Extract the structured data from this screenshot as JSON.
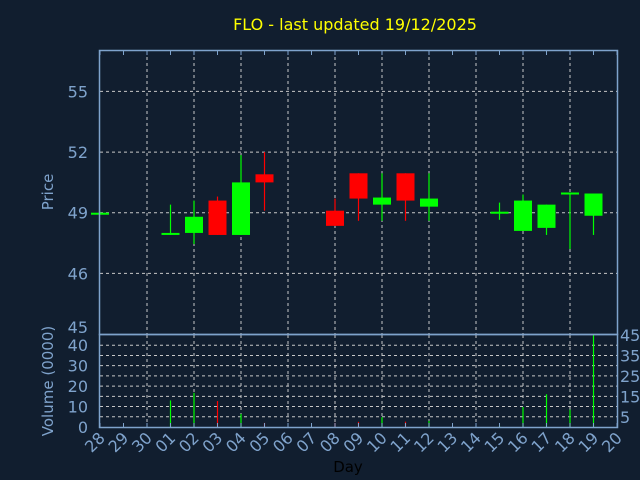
{
  "chart_data": {
    "type": "candlestick",
    "title": "FLO - last updated 19/12/2025",
    "xlabel": "Day",
    "price_panel": {
      "ylabel": "Price",
      "ylim": [
        43,
        57
      ],
      "yticks": [
        46,
        49,
        52,
        55
      ],
      "bottom_label": "45"
    },
    "volume_panel": {
      "ylabel": "Volume (0000)",
      "ylim": [
        0,
        45
      ],
      "yticks": [
        0,
        5,
        10,
        15,
        20,
        25,
        30,
        35,
        40,
        45
      ]
    },
    "categories": [
      "28",
      "29",
      "30",
      "01",
      "02",
      "03",
      "04",
      "05",
      "06",
      "07",
      "08",
      "09",
      "10",
      "11",
      "12",
      "13",
      "14",
      "15",
      "16",
      "17",
      "18",
      "19",
      "20"
    ],
    "candles": [
      {
        "day": "28",
        "open": 49.0,
        "high": 49.05,
        "low": 48.95,
        "close": 49.0,
        "volume": 0
      },
      {
        "day": "01",
        "open": 47.9,
        "high": 49.4,
        "low": 47.9,
        "close": 48.0,
        "volume": 13
      },
      {
        "day": "02",
        "open": 48.0,
        "high": 49.6,
        "low": 47.45,
        "close": 48.8,
        "volume": 16.7
      },
      {
        "day": "03",
        "open": 49.6,
        "high": 49.8,
        "low": 47.9,
        "close": 47.9,
        "volume": 12.7
      },
      {
        "day": "04",
        "open": 47.9,
        "high": 51.85,
        "low": 47.9,
        "close": 50.5,
        "volume": 6.4
      },
      {
        "day": "05",
        "open": 50.9,
        "high": 52.0,
        "low": 49.1,
        "close": 50.5,
        "volume": 2
      },
      {
        "day": "08",
        "open": 49.1,
        "high": 49.7,
        "low": 48.35,
        "close": 48.35,
        "volume": 2
      },
      {
        "day": "09",
        "open": 50.95,
        "high": 50.95,
        "low": 48.6,
        "close": 49.7,
        "volume": 2.5
      },
      {
        "day": "10",
        "open": 49.4,
        "high": 50.95,
        "low": 48.6,
        "close": 49.75,
        "volume": 4.8
      },
      {
        "day": "11",
        "open": 50.95,
        "high": 50.95,
        "low": 48.6,
        "close": 49.6,
        "volume": 2.6
      },
      {
        "day": "12",
        "open": 49.3,
        "high": 50.95,
        "low": 48.6,
        "close": 49.7,
        "volume": 3
      },
      {
        "day": "15",
        "open": 48.95,
        "high": 49.5,
        "low": 48.65,
        "close": 49.05,
        "volume": 0.5
      },
      {
        "day": "16",
        "open": 48.1,
        "high": 49.9,
        "low": 48.1,
        "close": 49.6,
        "volume": 9.8
      },
      {
        "day": "17",
        "open": 48.25,
        "high": 49.4,
        "low": 47.9,
        "close": 49.4,
        "volume": 16
      },
      {
        "day": "18",
        "open": 49.9,
        "high": 50.0,
        "low": 47.2,
        "close": 50.0,
        "volume": 8.5
      },
      {
        "day": "19",
        "open": 48.85,
        "high": 49.95,
        "low": 47.9,
        "close": 49.95,
        "volume": 45
      }
    ],
    "colors": {
      "up": "#00ff00",
      "down": "#ff0000",
      "background": "#111e2f",
      "axis": "#7fa3cc",
      "title": "#ffff00",
      "grid": "#c8c8c8"
    },
    "grid": true
  }
}
